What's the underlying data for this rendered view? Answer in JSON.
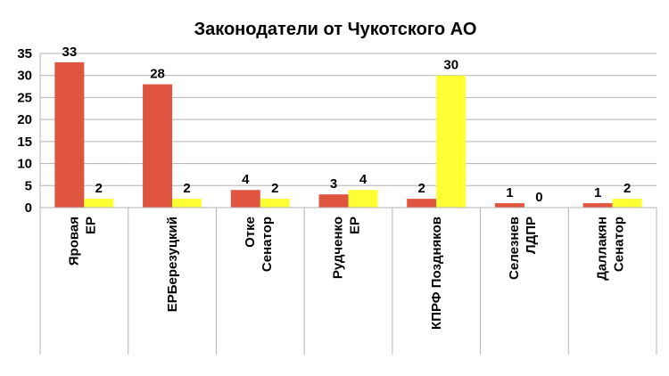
{
  "chart_data": {
    "type": "bar",
    "title": "Законодатели от Чукотского АО",
    "xlabel": "",
    "ylabel": "",
    "ylim": [
      0,
      35
    ],
    "yticks": [
      0,
      5,
      10,
      15,
      20,
      25,
      30,
      35
    ],
    "grid": true,
    "legend": "none",
    "categories": [
      "ЕР Яровая",
      "ЕРБерезуцкий",
      "Сенатор Отке",
      "ЕР Рудченко",
      "КПРФ Поздняков",
      "ЛДПР Селезнев",
      "Сенатор Даллакян"
    ],
    "category_lines": [
      [
        "Яровая",
        "ЕР"
      ],
      [
        "ЕРБерезуцкий",
        ""
      ],
      [
        "Отке",
        "Сенатор"
      ],
      [
        "Рудченко",
        "ЕР"
      ],
      [
        "КПРФ Поздняков",
        ""
      ],
      [
        "Селезнев",
        "ЛДПР"
      ],
      [
        "Даллакян",
        "Сенатор"
      ]
    ],
    "series": [
      {
        "values": [
          33,
          28,
          4,
          3,
          2,
          1,
          1
        ],
        "color": "#e05540"
      },
      {
        "values": [
          2,
          2,
          2,
          4,
          30,
          0,
          2
        ],
        "color": "#ffff33"
      }
    ]
  }
}
